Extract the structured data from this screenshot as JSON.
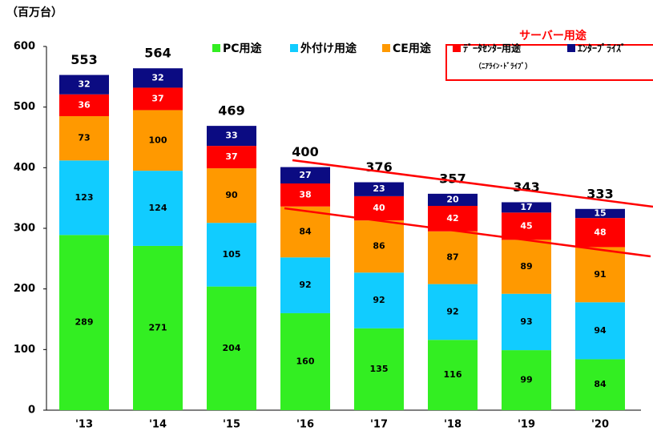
{
  "chart_data": {
    "type": "stacked_bar",
    "unit_label": "（百万台）",
    "categories": [
      "'13",
      "'14",
      "'15",
      "'16",
      "'17",
      "'18",
      "'19",
      "'20"
    ],
    "series": [
      {
        "name": "PC用途",
        "color": "#33ee22",
        "values": [
          289,
          271,
          204,
          160,
          135,
          116,
          99,
          84
        ]
      },
      {
        "name": "外付け用途",
        "color": "#11ccff",
        "values": [
          123,
          124,
          105,
          92,
          92,
          92,
          93,
          94
        ]
      },
      {
        "name": "CE用途",
        "color": "#ff9900",
        "values": [
          73,
          100,
          90,
          84,
          86,
          87,
          89,
          91
        ]
      },
      {
        "name": "ﾃﾞｰﾀｾﾝﾀｰ用途",
        "color": "#ff0000",
        "values": [
          36,
          37,
          37,
          38,
          40,
          42,
          45,
          48
        ]
      },
      {
        "name": "ｴﾝﾀｰﾌﾟﾗｲｽﾞ",
        "color": "#0b0b82",
        "values": [
          32,
          32,
          33,
          27,
          23,
          20,
          17,
          15
        ]
      }
    ],
    "totals": [
      553,
      564,
      469,
      400,
      376,
      357,
      343,
      333
    ],
    "server_group_label": "サーバー用途",
    "datacenter_note": "（ﾆｱﾗｲﾝ･ﾄﾞﾗｲﾌﾞ）",
    "ylim": [
      0,
      600
    ],
    "yticks": [
      0,
      100,
      200,
      300,
      400,
      500,
      600
    ]
  }
}
